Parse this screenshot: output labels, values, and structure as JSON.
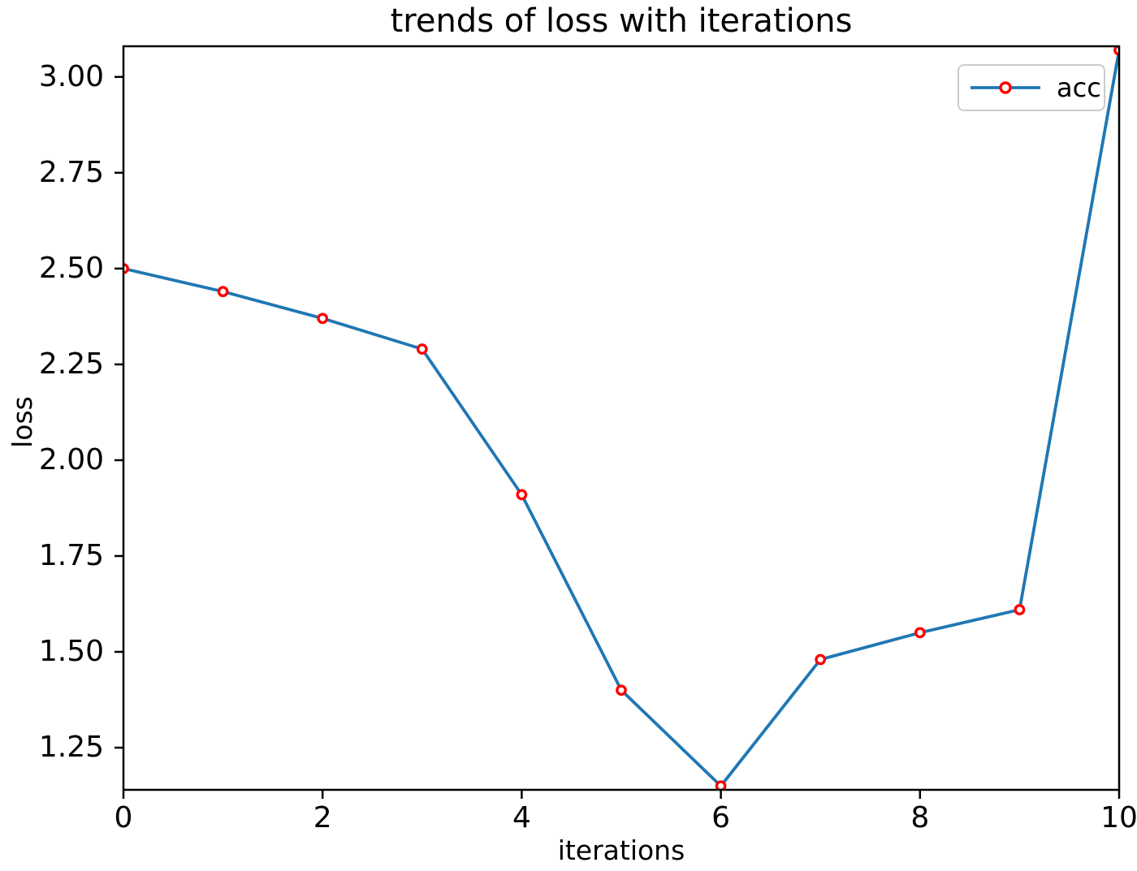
{
  "chart_data": {
    "type": "line",
    "title": "trends of loss with iterations",
    "xlabel": "iterations",
    "ylabel": "loss",
    "xlim": [
      0,
      10
    ],
    "ylim": [
      1.14,
      3.08
    ],
    "grid": false,
    "x_ticks": [
      {
        "value": 0,
        "label": "0"
      },
      {
        "value": 2,
        "label": "2"
      },
      {
        "value": 4,
        "label": "4"
      },
      {
        "value": 6,
        "label": "6"
      },
      {
        "value": 8,
        "label": "8"
      },
      {
        "value": 10,
        "label": "10"
      }
    ],
    "y_ticks": [
      {
        "value": 1.25,
        "label": "1.25"
      },
      {
        "value": 1.5,
        "label": "1.50"
      },
      {
        "value": 1.75,
        "label": "1.75"
      },
      {
        "value": 2.0,
        "label": "2.00"
      },
      {
        "value": 2.25,
        "label": "2.25"
      },
      {
        "value": 2.5,
        "label": "2.50"
      },
      {
        "value": 2.75,
        "label": "2.75"
      },
      {
        "value": 3.0,
        "label": "3.00"
      }
    ],
    "series": [
      {
        "name": "acc",
        "x": [
          0,
          1,
          2,
          3,
          4,
          5,
          6,
          7,
          8,
          9,
          10
        ],
        "values": [
          2.5,
          2.44,
          2.37,
          2.29,
          1.91,
          1.4,
          1.15,
          1.48,
          1.55,
          1.61,
          3.07
        ],
        "line_color": "#1f77b4",
        "marker": "open-circle",
        "marker_edge_color": "#ff0000",
        "marker_face_color": "#ffffff"
      }
    ],
    "legend": {
      "position": "upper-right",
      "entries": [
        {
          "label": "acc"
        }
      ]
    }
  },
  "colors": {
    "background": "#ffffff",
    "spine": "#000000",
    "text": "#000000",
    "legend_border": "#cbcbcb",
    "line": "#1f77b4",
    "marker": "#ff0000"
  }
}
